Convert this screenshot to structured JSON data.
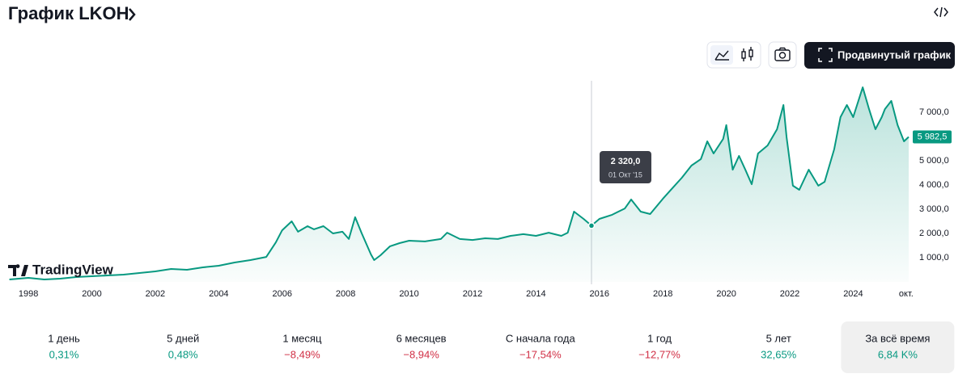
{
  "header": {
    "title": "График LKOH",
    "button": "Продвинутый график"
  },
  "logo": "TradingView",
  "chart_data": {
    "type": "area",
    "color": "#089981",
    "series": [
      {
        "color": "#089981",
        "x": [
          1997.4,
          1998.0,
          1998.5,
          1999.0,
          1999.5,
          2000.0,
          2000.5,
          2001.0,
          2001.5,
          2002.0,
          2002.5,
          2003.0,
          2003.5,
          2004.0,
          2004.5,
          2005.0,
          2005.5,
          2005.8,
          2006.0,
          2006.3,
          2006.5,
          2006.8,
          2007.0,
          2007.3,
          2007.6,
          2007.9,
          2008.1,
          2008.3,
          2008.5,
          2008.8,
          2008.9,
          2009.1,
          2009.4,
          2009.7,
          2010.0,
          2010.5,
          2011.0,
          2011.2,
          2011.6,
          2012.0,
          2012.4,
          2012.8,
          2013.2,
          2013.6,
          2014.0,
          2014.4,
          2014.8,
          2015.0,
          2015.2,
          2015.5,
          2015.75,
          2016.0,
          2016.4,
          2016.8,
          2017.0,
          2017.3,
          2017.6,
          2018.0,
          2018.3,
          2018.6,
          2018.9,
          2019.2,
          2019.4,
          2019.6,
          2019.9,
          2020.0,
          2020.2,
          2020.4,
          2020.6,
          2020.8,
          2021.0,
          2021.3,
          2021.6,
          2021.8,
          2021.9,
          2022.1,
          2022.3,
          2022.6,
          2022.9,
          2023.1,
          2023.4,
          2023.6,
          2023.8,
          2024.0,
          2024.3,
          2024.5,
          2024.7,
          2024.9,
          2025.0,
          2025.2,
          2025.4,
          2025.6,
          2025.75
        ],
        "values": [
          100,
          167,
          100,
          133,
          200,
          233,
          267,
          300,
          367,
          433,
          533,
          500,
          600,
          667,
          800,
          900,
          1030,
          1630,
          2130,
          2500,
          2070,
          2300,
          2170,
          2300,
          2000,
          2070,
          1770,
          2670,
          2030,
          1130,
          900,
          1100,
          1470,
          1600,
          1700,
          1670,
          1770,
          2030,
          1770,
          1730,
          1800,
          1770,
          1900,
          1970,
          1900,
          2030,
          1900,
          2030,
          2900,
          2600,
          2320,
          2600,
          2770,
          3030,
          3400,
          2900,
          2800,
          3430,
          3870,
          4300,
          4800,
          5070,
          5800,
          5300,
          5900,
          6470,
          4630,
          5200,
          4630,
          4030,
          5300,
          5630,
          6300,
          7300,
          5970,
          3970,
          3800,
          4630,
          3970,
          4130,
          5470,
          6800,
          7300,
          6800,
          8030,
          7130,
          6300,
          6800,
          7130,
          7470,
          6470,
          5800,
          5982.5
        ]
      }
    ],
    "xlim": [
      1997.36,
      2025.8
    ],
    "xticks": [
      1998,
      2000,
      2002,
      2004,
      2006,
      2008,
      2010,
      2012,
      2014,
      2016,
      2018,
      2020,
      2022,
      2024,
      {
        "value": 2025.67,
        "label": "окт."
      }
    ],
    "ylim": [
      0,
      8300
    ],
    "yticks": [
      {
        "value": 1000,
        "label": "1 000,0"
      },
      {
        "value": 2000,
        "label": "2 000,0"
      },
      {
        "value": 3000,
        "label": "3 000,0"
      },
      {
        "value": 4000,
        "label": "4 000,0"
      },
      {
        "value": 5000,
        "label": "5 000,0"
      },
      {
        "value": 7000,
        "label": "7 000,0"
      }
    ],
    "last_price": {
      "value": 5982.5,
      "label": "5 982,5"
    },
    "tooltip": {
      "x": 2015.75,
      "value": 2320,
      "label": "2 320,0",
      "date": "01 Окт '15"
    }
  },
  "periods": [
    {
      "label": "1 день",
      "value": "0,31%",
      "color": "#089981"
    },
    {
      "label": "5 дней",
      "value": "0,48%",
      "color": "#089981"
    },
    {
      "label": "1 месяц",
      "value": "−8,49%",
      "color": "#d12f45"
    },
    {
      "label": "6 месяцев",
      "value": "−8,94%",
      "color": "#d12f45"
    },
    {
      "label": "С начала года",
      "value": "−17,54%",
      "color": "#d12f45"
    },
    {
      "label": "1 год",
      "value": "−12,77%",
      "color": "#d12f45"
    },
    {
      "label": "5 лет",
      "value": "32,65%",
      "color": "#089981"
    },
    {
      "label": "За всё время",
      "value": "6,84 K%",
      "color": "#089981"
    }
  ]
}
